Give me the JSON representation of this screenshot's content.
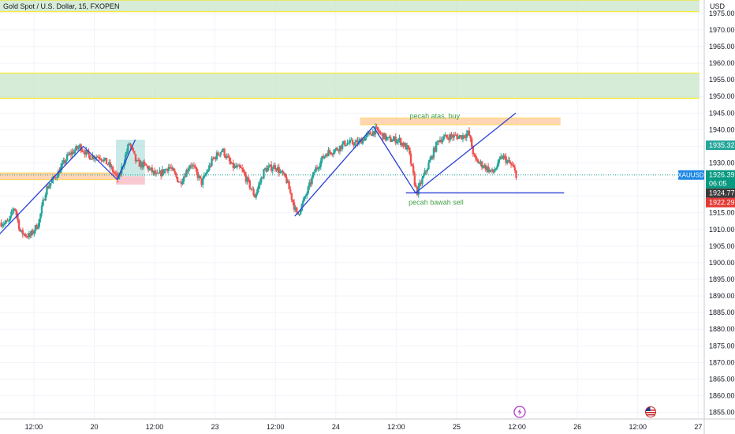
{
  "header": {
    "title": "Gold Spot / U.S. Dollar, 15, FXOPEN"
  },
  "colors": {
    "up": "#26a69a",
    "down": "#ef5350",
    "line": "#2a3fd6",
    "zone_green": "#c8e6c9",
    "zone_orange": "#ffcba4",
    "zone_yellow": "#ffe600"
  },
  "icons": {
    "lightning": "lightning-icon",
    "flag": "us-flag-icon"
  },
  "chart_data": {
    "type": "candlestick",
    "symbol": "XAUUSD",
    "currency": "USD",
    "ylim": [
      1853,
      1979
    ],
    "y_ticks": [
      1855,
      1860,
      1865,
      1870,
      1875,
      1880,
      1885,
      1890,
      1895,
      1900,
      1905,
      1910,
      1915,
      1920,
      1925,
      1930,
      1935,
      1940,
      1945,
      1950,
      1955,
      1960,
      1965,
      1970,
      1975
    ],
    "x_ticks": [
      {
        "t": 2.5,
        "label": "12:00"
      },
      {
        "t": 3.0,
        "label": "20"
      },
      {
        "t": 3.5,
        "label": "12:00"
      },
      {
        "t": 4.0,
        "label": "23"
      },
      {
        "t": 4.5,
        "label": "12:00"
      },
      {
        "t": 5.0,
        "label": "24"
      },
      {
        "t": 5.5,
        "label": "12:00"
      },
      {
        "t": 6.0,
        "label": "25"
      },
      {
        "t": 6.5,
        "label": "12:00"
      },
      {
        "t": 7.0,
        "label": "26"
      },
      {
        "t": 7.5,
        "label": "12:00"
      },
      {
        "t": 8.0,
        "label": "27"
      }
    ],
    "price_anchors": [
      {
        "t": 2.29,
        "p": 1912
      },
      {
        "t": 2.34,
        "p": 1917
      },
      {
        "t": 2.39,
        "p": 1909
      },
      {
        "t": 2.47,
        "p": 1908
      },
      {
        "t": 2.54,
        "p": 1912
      },
      {
        "t": 2.6,
        "p": 1922
      },
      {
        "t": 2.7,
        "p": 1927
      },
      {
        "t": 2.78,
        "p": 1932
      },
      {
        "t": 2.88,
        "p": 1935
      },
      {
        "t": 2.96,
        "p": 1932
      },
      {
        "t": 3.05,
        "p": 1932
      },
      {
        "t": 3.13,
        "p": 1929
      },
      {
        "t": 3.2,
        "p": 1925
      },
      {
        "t": 3.29,
        "p": 1936
      },
      {
        "t": 3.35,
        "p": 1930
      },
      {
        "t": 3.43,
        "p": 1929
      },
      {
        "t": 3.52,
        "p": 1926
      },
      {
        "t": 3.62,
        "p": 1929
      },
      {
        "t": 3.71,
        "p": 1924
      },
      {
        "t": 3.8,
        "p": 1930
      },
      {
        "t": 3.89,
        "p": 1924
      },
      {
        "t": 3.98,
        "p": 1931
      },
      {
        "t": 4.06,
        "p": 1934
      },
      {
        "t": 4.14,
        "p": 1929
      },
      {
        "t": 4.22,
        "p": 1928
      },
      {
        "t": 4.33,
        "p": 1920
      },
      {
        "t": 4.41,
        "p": 1928
      },
      {
        "t": 4.5,
        "p": 1929
      },
      {
        "t": 4.59,
        "p": 1925
      },
      {
        "t": 4.68,
        "p": 1914
      },
      {
        "t": 4.75,
        "p": 1920
      },
      {
        "t": 4.83,
        "p": 1928
      },
      {
        "t": 4.92,
        "p": 1933
      },
      {
        "t": 5.0,
        "p": 1934
      },
      {
        "t": 5.08,
        "p": 1936
      },
      {
        "t": 5.18,
        "p": 1936
      },
      {
        "t": 5.33,
        "p": 1940
      },
      {
        "t": 5.43,
        "p": 1937
      },
      {
        "t": 5.52,
        "p": 1937
      },
      {
        "t": 5.6,
        "p": 1934
      },
      {
        "t": 5.67,
        "p": 1921
      },
      {
        "t": 5.75,
        "p": 1928
      },
      {
        "t": 5.85,
        "p": 1937
      },
      {
        "t": 5.94,
        "p": 1938
      },
      {
        "t": 6.04,
        "p": 1938
      },
      {
        "t": 6.1,
        "p": 1939
      },
      {
        "t": 6.15,
        "p": 1931
      },
      {
        "t": 6.23,
        "p": 1929
      },
      {
        "t": 6.3,
        "p": 1927
      },
      {
        "t": 6.38,
        "p": 1932
      },
      {
        "t": 6.46,
        "p": 1929
      },
      {
        "t": 6.5,
        "p": 1926
      }
    ],
    "zones": [
      {
        "t0": 2.22,
        "t1": 8.01,
        "p0": 1975.5,
        "p1": 1979,
        "kind": "green"
      },
      {
        "t0": 2.22,
        "t1": 8.01,
        "p0": 1949.5,
        "p1": 1957,
        "kind": "green"
      },
      {
        "t0": 5.2,
        "t1": 6.86,
        "p0": 1941.5,
        "p1": 1943.5,
        "kind": "orange"
      },
      {
        "t0": 2.22,
        "t1": 3.18,
        "p0": 1925,
        "p1": 1927,
        "kind": "orange"
      },
      {
        "t0": 3.18,
        "t1": 3.42,
        "p0": 1926,
        "p1": 1937,
        "kind": "teal"
      },
      {
        "t0": 3.18,
        "t1": 3.42,
        "p0": 1923.5,
        "p1": 1926,
        "kind": "red"
      }
    ],
    "trendlines": [
      {
        "t0": 2.2,
        "p0": 1908,
        "t1": 2.91,
        "p1": 1935
      },
      {
        "t0": 2.91,
        "p0": 1935,
        "t1": 3.19,
        "p1": 1925
      },
      {
        "t0": 3.19,
        "p0": 1925,
        "t1": 3.34,
        "p1": 1937
      },
      {
        "t0": 4.66,
        "p0": 1914,
        "t1": 5.31,
        "p1": 1941
      },
      {
        "t0": 5.31,
        "p0": 1941,
        "t1": 5.66,
        "p1": 1921
      },
      {
        "t0": 5.66,
        "p0": 1921,
        "t1": 6.49,
        "p1": 1945
      },
      {
        "t0": 5.58,
        "p0": 1921,
        "t1": 6.89,
        "p1": 1921
      }
    ],
    "annotations": [
      {
        "text": "pecah atas, buy",
        "t": 5.82,
        "p": 1943.4
      },
      {
        "text": "pecah bawah sell",
        "t": 5.83,
        "p": 1917.4
      }
    ],
    "price_labels": [
      {
        "value": "1935.32",
        "bg": "#26a69a"
      },
      {
        "value": "1926.39",
        "extra": "06:05",
        "bg": "#089981",
        "symbol": "XAUUSD"
      },
      {
        "value": "1924.77",
        "bg": "#3b3b3b"
      },
      {
        "value": "1922.29",
        "bg": "#e53935"
      }
    ],
    "horizontal_lines": [
      {
        "p": 1926.39,
        "style": "dotted",
        "color": "#089981"
      }
    ]
  }
}
